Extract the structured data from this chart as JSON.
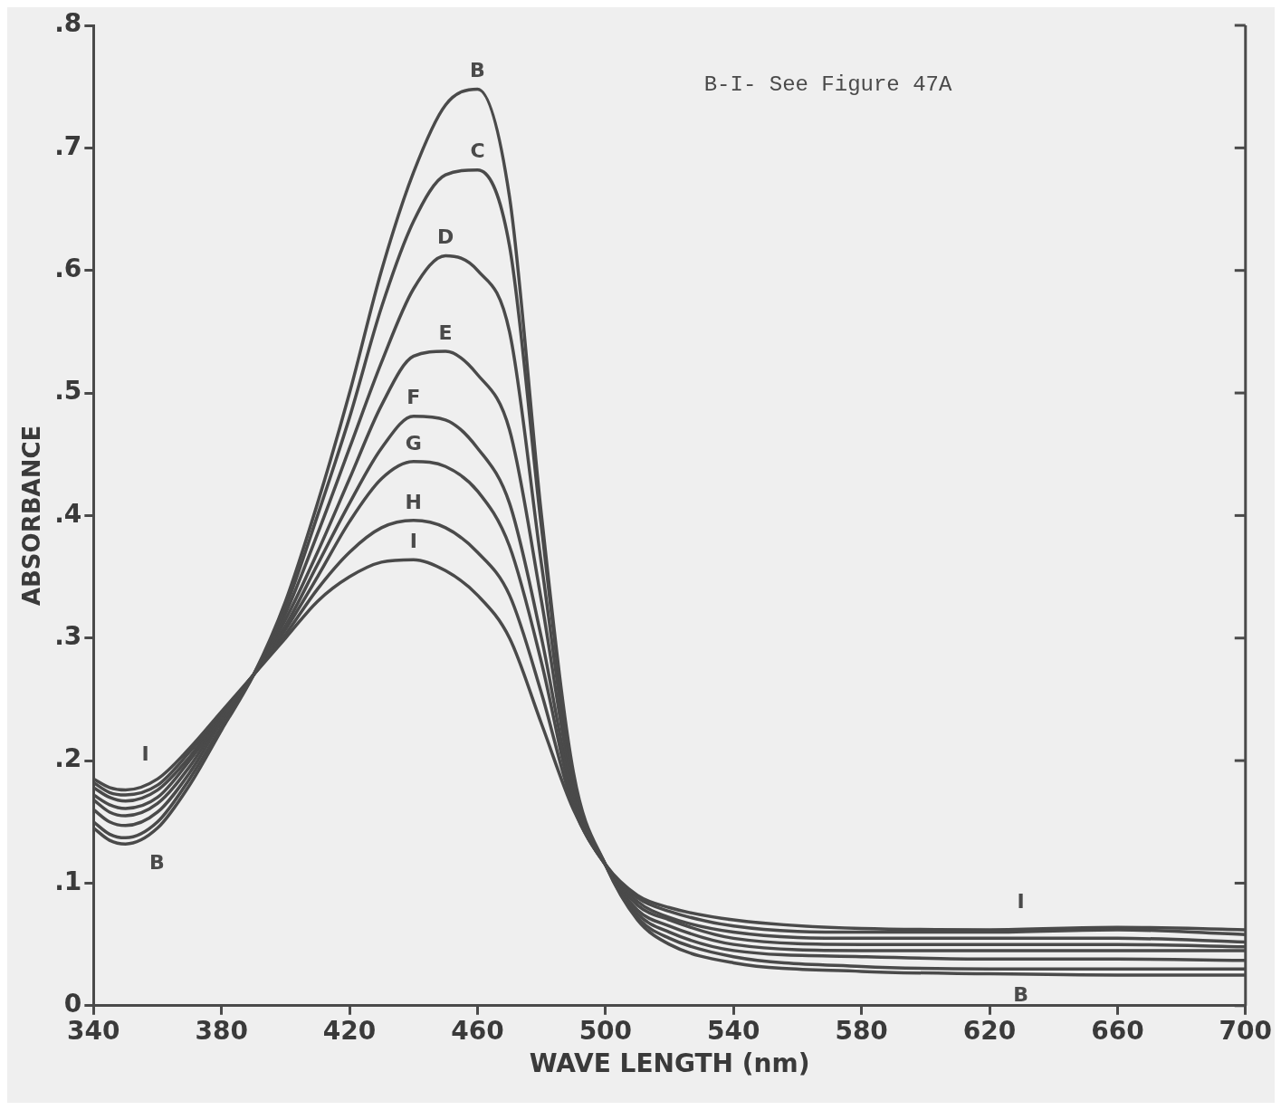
{
  "chart_data": {
    "type": "line",
    "xlabel": "WAVE LENGTH (nm)",
    "ylabel": "ABSORBANCE",
    "x": [
      340,
      345,
      350,
      360,
      370,
      380,
      390,
      400,
      410,
      420,
      430,
      440,
      450,
      460,
      470,
      480,
      490,
      500,
      510,
      520,
      540,
      580,
      620,
      660,
      700
    ],
    "xlim": [
      340,
      700
    ],
    "xticks": [
      340,
      380,
      420,
      460,
      500,
      540,
      580,
      620,
      660,
      700
    ],
    "ylim": [
      0,
      0.8
    ],
    "yticks": [
      {
        "value": 0,
        "label": "0"
      },
      {
        "value": 0.1,
        "label": ".1"
      },
      {
        "value": 0.2,
        "label": ".2"
      },
      {
        "value": 0.3,
        "label": ".3"
      },
      {
        "value": 0.4,
        "label": ".4"
      },
      {
        "value": 0.5,
        "label": ".5"
      },
      {
        "value": 0.6,
        "label": ".6"
      },
      {
        "value": 0.7,
        "label": ".7"
      },
      {
        "value": 0.8,
        "label": ".8"
      }
    ],
    "grid": false,
    "legend": false,
    "marker": "none",
    "line_style": "solid",
    "series": [
      {
        "name": "B",
        "color": "#4a4a4a",
        "values": [
          0.145,
          0.135,
          0.132,
          0.145,
          0.18,
          0.225,
          0.27,
          0.33,
          0.41,
          0.5,
          0.6,
          0.68,
          0.735,
          0.748,
          0.66,
          0.4,
          0.19,
          0.115,
          0.07,
          0.05,
          0.035,
          0.028,
          0.026,
          0.025,
          0.025
        ]
      },
      {
        "name": "C",
        "color": "#4a4a4a",
        "values": [
          0.15,
          0.14,
          0.137,
          0.15,
          0.185,
          0.228,
          0.27,
          0.325,
          0.4,
          0.48,
          0.57,
          0.64,
          0.678,
          0.682,
          0.62,
          0.39,
          0.185,
          0.115,
          0.072,
          0.055,
          0.04,
          0.032,
          0.03,
          0.03,
          0.03
        ]
      },
      {
        "name": "D",
        "color": "#4a4a4a",
        "values": [
          0.16,
          0.15,
          0.147,
          0.158,
          0.19,
          0.232,
          0.27,
          0.32,
          0.385,
          0.455,
          0.525,
          0.585,
          0.612,
          0.6,
          0.55,
          0.36,
          0.18,
          0.115,
          0.075,
          0.06,
          0.045,
          0.04,
          0.038,
          0.038,
          0.037
        ]
      },
      {
        "name": "E",
        "color": "#4a4a4a",
        "values": [
          0.168,
          0.158,
          0.155,
          0.165,
          0.195,
          0.235,
          0.27,
          0.315,
          0.37,
          0.43,
          0.49,
          0.53,
          0.534,
          0.515,
          0.47,
          0.33,
          0.175,
          0.115,
          0.078,
          0.065,
          0.05,
          0.045,
          0.045,
          0.045,
          0.045
        ]
      },
      {
        "name": "F",
        "color": "#4a4a4a",
        "values": [
          0.172,
          0.164,
          0.161,
          0.17,
          0.2,
          0.236,
          0.27,
          0.31,
          0.36,
          0.41,
          0.455,
          0.481,
          0.478,
          0.455,
          0.41,
          0.3,
          0.17,
          0.115,
          0.082,
          0.07,
          0.055,
          0.05,
          0.05,
          0.05,
          0.048
        ]
      },
      {
        "name": "G",
        "color": "#4a4a4a",
        "values": [
          0.178,
          0.17,
          0.167,
          0.176,
          0.203,
          0.237,
          0.27,
          0.307,
          0.35,
          0.395,
          0.43,
          0.444,
          0.44,
          0.42,
          0.375,
          0.28,
          0.165,
          0.115,
          0.085,
          0.072,
          0.06,
          0.055,
          0.055,
          0.055,
          0.052
        ]
      },
      {
        "name": "H",
        "color": "#4a4a4a",
        "values": [
          0.182,
          0.174,
          0.172,
          0.18,
          0.207,
          0.238,
          0.27,
          0.303,
          0.34,
          0.37,
          0.39,
          0.396,
          0.39,
          0.37,
          0.335,
          0.255,
          0.162,
          0.115,
          0.088,
          0.077,
          0.065,
          0.06,
          0.06,
          0.062,
          0.058
        ]
      },
      {
        "name": "I",
        "color": "#4a4a4a",
        "values": [
          0.185,
          0.178,
          0.176,
          0.185,
          0.21,
          0.24,
          0.27,
          0.3,
          0.33,
          0.35,
          0.362,
          0.364,
          0.355,
          0.335,
          0.3,
          0.23,
          0.16,
          0.115,
          0.09,
          0.08,
          0.07,
          0.063,
          0.062,
          0.064,
          0.062
        ]
      }
    ],
    "annotations": [
      "B-I- See Figure 47A",
      "I",
      "B",
      "I",
      "B"
    ]
  }
}
